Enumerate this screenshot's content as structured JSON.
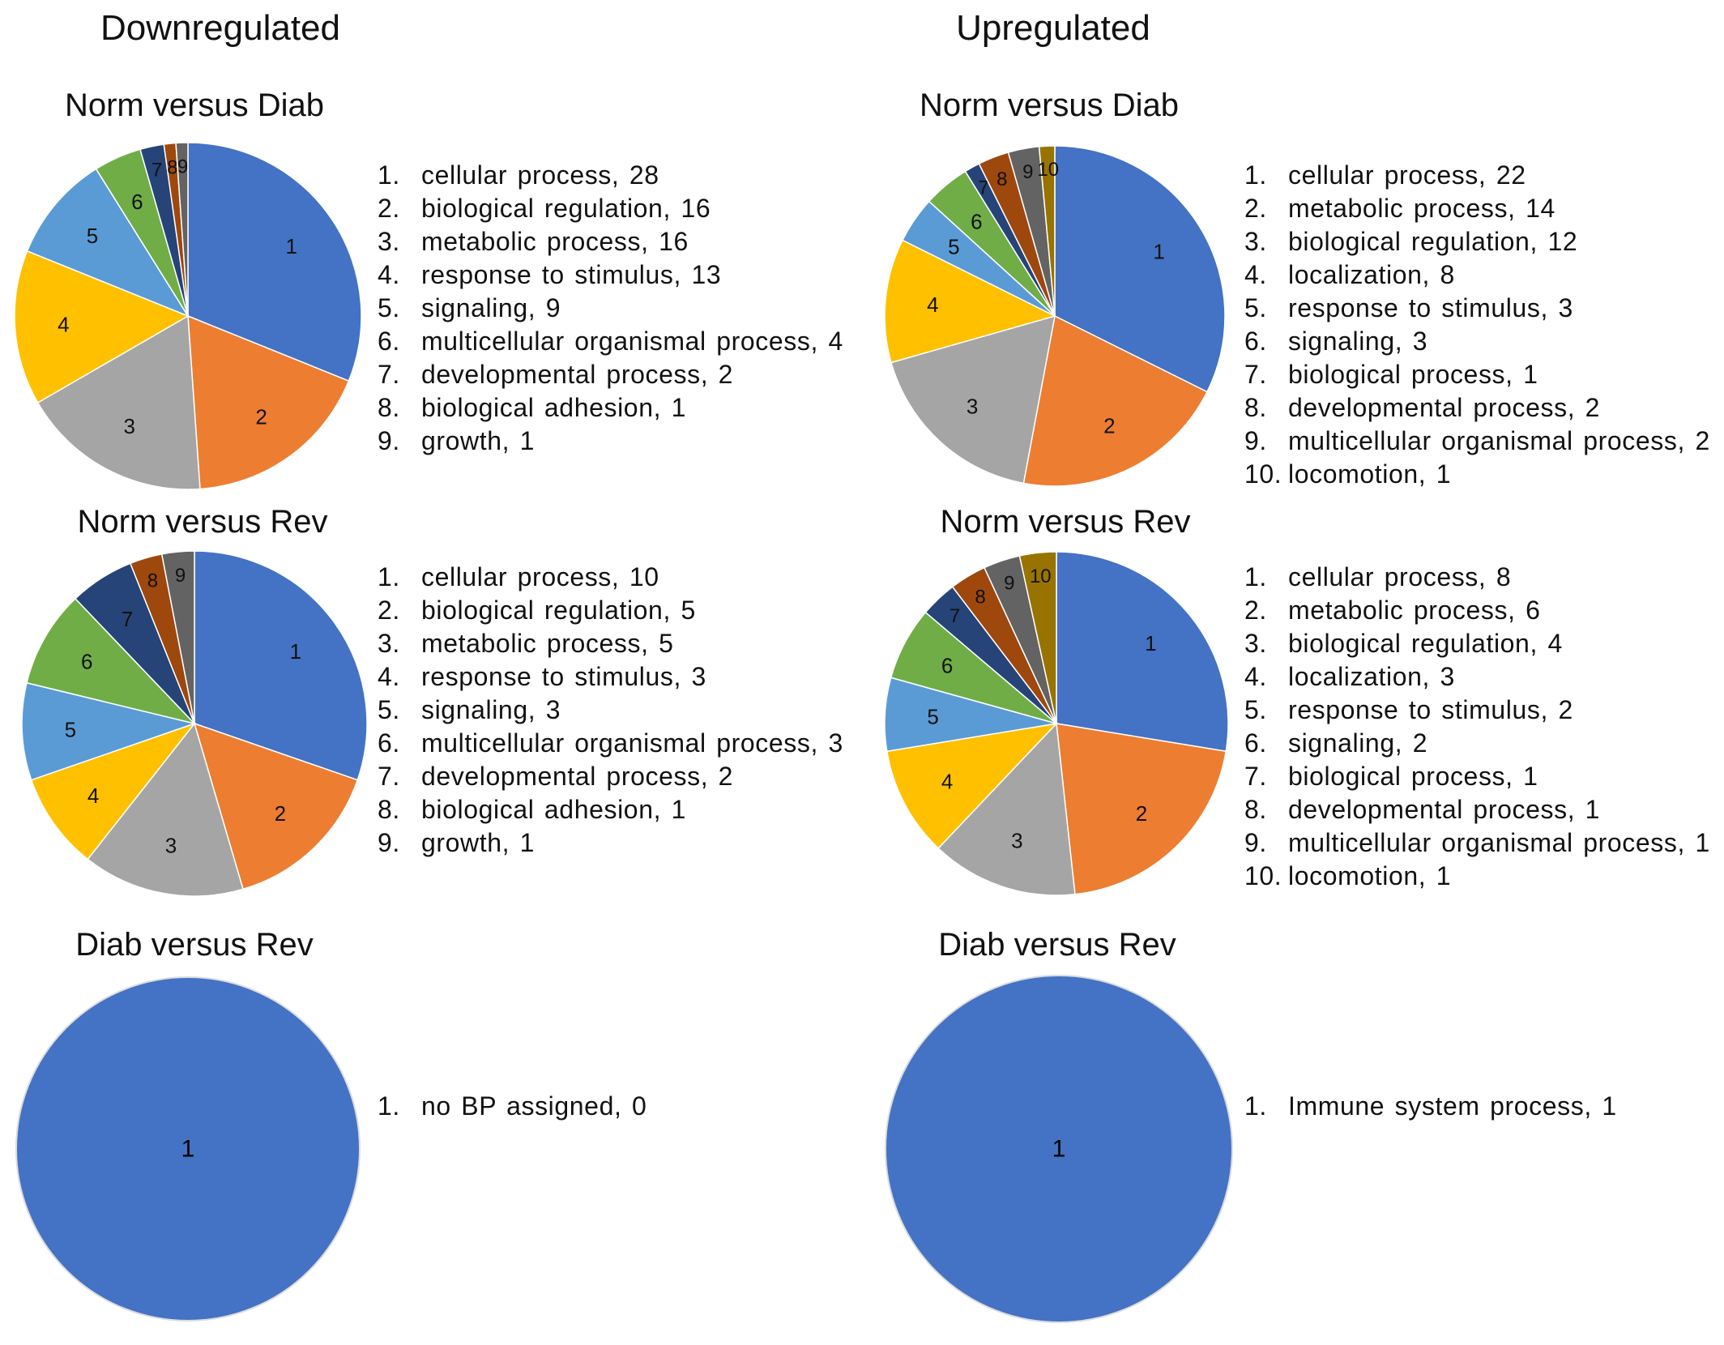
{
  "groups": {
    "down": "Downregulated",
    "up": "Upregulated"
  },
  "colors": [
    "#4472C4",
    "#ED7D31",
    "#A5A5A5",
    "#FFC000",
    "#5B9BD5",
    "#70AD47",
    "#264478",
    "#9E480E",
    "#636363",
    "#997300"
  ],
  "chart_data": [
    {
      "id": "down-nd",
      "group": "Downregulated",
      "type": "pie",
      "title": "Norm versus Diab",
      "slices": [
        {
          "label": "cellular process",
          "value": 28
        },
        {
          "label": "biological regulation",
          "value": 16
        },
        {
          "label": "metabolic process",
          "value": 16
        },
        {
          "label": "response to stimulus",
          "value": 13
        },
        {
          "label": "signaling",
          "value": 9
        },
        {
          "label": "multicellular organismal process",
          "value": 4
        },
        {
          "label": "developmental process",
          "value": 2
        },
        {
          "label": "biological adhesion",
          "value": 1
        },
        {
          "label": "growth",
          "value": 1
        }
      ]
    },
    {
      "id": "up-nd",
      "group": "Upregulated",
      "type": "pie",
      "title": "Norm versus Diab",
      "slices": [
        {
          "label": "cellular process",
          "value": 22
        },
        {
          "label": "metabolic process",
          "value": 14
        },
        {
          "label": "biological regulation",
          "value": 12
        },
        {
          "label": "localization",
          "value": 8
        },
        {
          "label": "response to stimulus",
          "value": 3
        },
        {
          "label": "signaling",
          "value": 3
        },
        {
          "label": "biological process",
          "value": 1
        },
        {
          "label": "developmental process",
          "value": 2
        },
        {
          "label": "multicellular organismal process",
          "value": 2
        },
        {
          "label": "locomotion",
          "value": 1
        }
      ]
    },
    {
      "id": "down-nr",
      "group": "Downregulated",
      "type": "pie",
      "title": "Norm versus Rev",
      "slices": [
        {
          "label": "cellular process",
          "value": 10
        },
        {
          "label": "biological regulation",
          "value": 5
        },
        {
          "label": "metabolic process",
          "value": 5
        },
        {
          "label": "response to stimulus",
          "value": 3
        },
        {
          "label": "signaling",
          "value": 3
        },
        {
          "label": "multicellular organismal process",
          "value": 3
        },
        {
          "label": "developmental process",
          "value": 2
        },
        {
          "label": "biological adhesion",
          "value": 1
        },
        {
          "label": "growth",
          "value": 1
        }
      ]
    },
    {
      "id": "up-nr",
      "group": "Upregulated",
      "type": "pie",
      "title": "Norm versus Rev",
      "slices": [
        {
          "label": "cellular process",
          "value": 8
        },
        {
          "label": "metabolic process",
          "value": 6
        },
        {
          "label": "biological regulation",
          "value": 4
        },
        {
          "label": "localization",
          "value": 3
        },
        {
          "label": "response to stimulus",
          "value": 2
        },
        {
          "label": "signaling",
          "value": 2
        },
        {
          "label": "biological process",
          "value": 1
        },
        {
          "label": "developmental process",
          "value": 1
        },
        {
          "label": "multicellular organismal process",
          "value": 1
        },
        {
          "label": "locomotion",
          "value": 1
        }
      ]
    },
    {
      "id": "down-dr",
      "group": "Downregulated",
      "type": "pie",
      "title": "Diab versus Rev",
      "slices": [
        {
          "label": "no BP assigned",
          "value": 0
        }
      ]
    },
    {
      "id": "up-dr",
      "group": "Upregulated",
      "type": "pie",
      "title": "Diab versus Rev",
      "slices": [
        {
          "label": "Immune system process",
          "value": 1
        }
      ]
    }
  ]
}
